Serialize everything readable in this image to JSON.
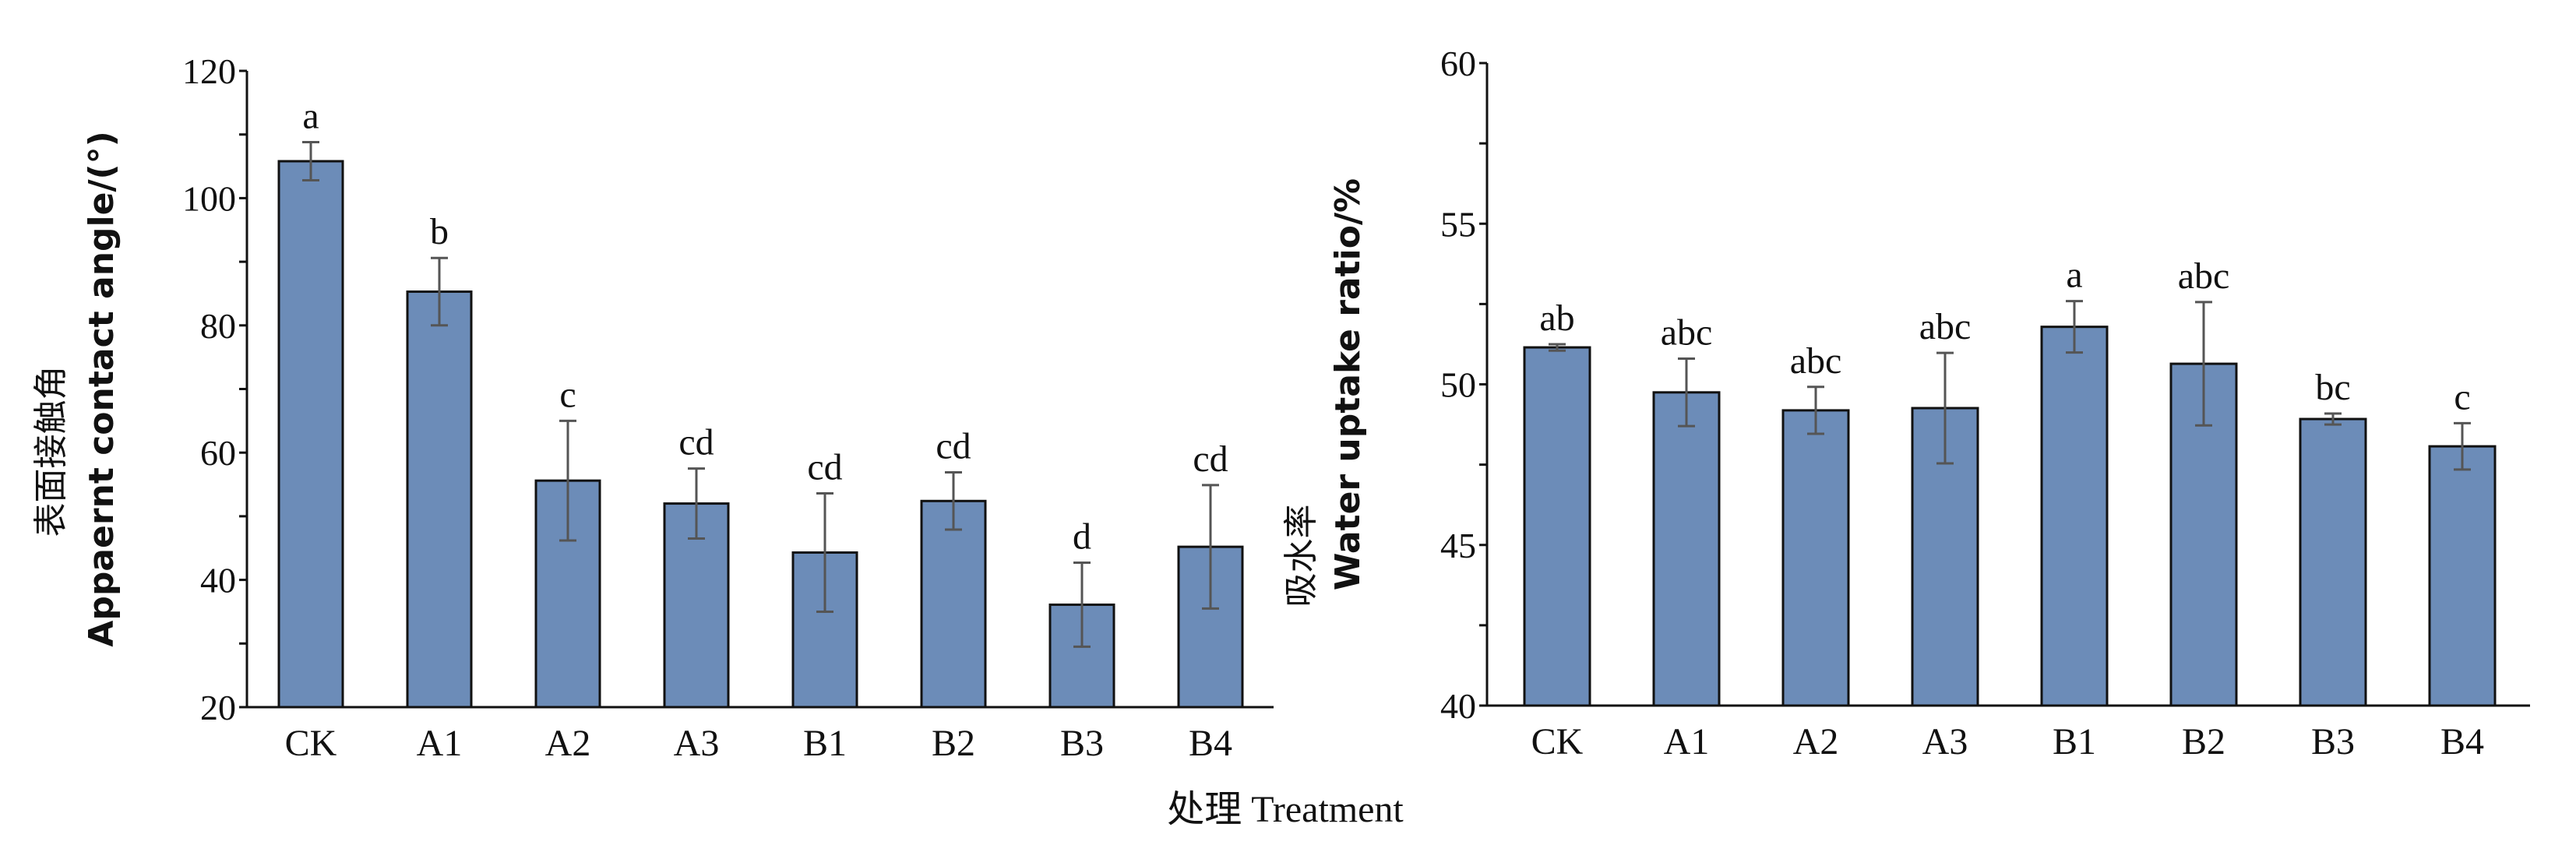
{
  "chart_data": [
    {
      "type": "bar",
      "title": "",
      "categories": [
        "CK",
        "A1",
        "A2",
        "A3",
        "B1",
        "B2",
        "B3",
        "B4"
      ],
      "values": [
        105.8,
        85.3,
        55.6,
        52.0,
        44.3,
        52.4,
        36.1,
        45.2
      ],
      "errors": [
        3.0,
        5.3,
        9.4,
        5.5,
        9.3,
        4.5,
        6.6,
        9.7
      ],
      "significance": [
        "a",
        "b",
        "c",
        "cd",
        "cd",
        "cd",
        "d",
        "cd"
      ],
      "ylabel_cn": "表面接触角",
      "ylabel": "Appaernt contact angle/(°)",
      "ylim": [
        20,
        120
      ],
      "yticks": [
        20,
        40,
        60,
        80,
        100,
        120
      ],
      "grid": false
    },
    {
      "type": "bar",
      "title": "",
      "categories": [
        "CK",
        "A1",
        "A2",
        "A3",
        "B1",
        "B2",
        "B3",
        "B4"
      ],
      "values": [
        51.15,
        49.75,
        49.19,
        49.26,
        51.79,
        50.64,
        48.92,
        48.07
      ],
      "errors": [
        0.1,
        1.05,
        0.73,
        1.72,
        0.8,
        1.92,
        0.17,
        0.72
      ],
      "significance": [
        "ab",
        "abc",
        "abc",
        "abc",
        "a",
        "abc",
        "bc",
        "c"
      ],
      "ylabel_cn": "吸水率",
      "ylabel": "Water uptake ratio/%",
      "ylim": [
        40,
        60
      ],
      "yticks": [
        40,
        45,
        50,
        55,
        60
      ],
      "grid": false
    }
  ],
  "xlabel": "处理  Treatment",
  "colors": {
    "bar": "#6c8cb8",
    "edge": "#111111",
    "error": "#555555"
  }
}
